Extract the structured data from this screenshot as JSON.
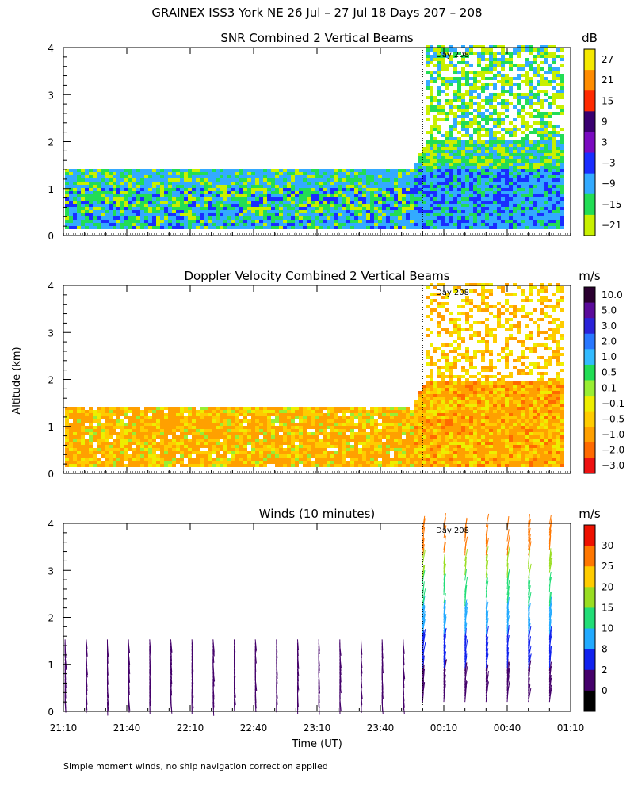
{
  "title": "GRAINEX ISS3 York NE  26 Jul – 27 Jul 18 Days 207 – 208",
  "footer": "Simple moment winds, no ship navigation correction applied",
  "ylabel": "Altitude (km)",
  "xlabel": "Time (UT)",
  "day_marker": "Day 208",
  "chart_data": [
    {
      "type": "heatmap",
      "title": "SNR Combined 2 Vertical Beams",
      "units": "dB",
      "ylabel": "Altitude (km)",
      "ylim": [
        0,
        4
      ],
      "yticks": [
        "0",
        "1",
        "2",
        "3",
        "4"
      ],
      "x_range_hours": [
        21.1667,
        25.1667
      ],
      "day_boundary_hour": 24.0,
      "low_mode_top_km": 1.4,
      "high_mode_top_km": 4.0,
      "colorbar": {
        "labels": [
          "27",
          "21",
          "15",
          "9",
          "3",
          "−3",
          "−9",
          "−15",
          "−21"
        ],
        "colors": [
          "#f5e800",
          "#ff8c00",
          "#ff2a00",
          "#3a0070",
          "#7a0ac0",
          "#1a2dff",
          "#33aaff",
          "#22dd55",
          "#c8f000"
        ]
      }
    },
    {
      "type": "heatmap",
      "title": "Doppler Velocity Combined 2 Vertical Beams",
      "units": "m/s",
      "ylabel": "Altitude (km)",
      "ylim": [
        0,
        4
      ],
      "yticks": [
        "0",
        "1",
        "2",
        "3",
        "4"
      ],
      "x_range_hours": [
        21.1667,
        25.1667
      ],
      "day_boundary_hour": 24.0,
      "colorbar": {
        "labels": [
          "10.0",
          "5.0",
          "3.0",
          "2.0",
          "1.0",
          "0.5",
          "0.1",
          "−0.1",
          "−0.5",
          "−1.0",
          "−2.0",
          "−3.0"
        ],
        "colors": [
          "#2a0030",
          "#5a0a9a",
          "#2a22d8",
          "#2877ff",
          "#33bbff",
          "#22dd55",
          "#99ee33",
          "#eeee00",
          "#ffcc00",
          "#ffa000",
          "#ff6a00",
          "#ee1111"
        ]
      }
    },
    {
      "type": "wind_barbs",
      "title": "Winds (10 minutes)",
      "units": "m/s",
      "ylabel": "Altitude (km)",
      "ylim": [
        0,
        4
      ],
      "yticks": [
        "0",
        "1",
        "2",
        "3",
        "4"
      ],
      "xlabel": "Time (UT)",
      "xticks": [
        "21:10",
        "21:40",
        "22:10",
        "22:40",
        "23:10",
        "23:40",
        "00:10",
        "00:40",
        "01:10"
      ],
      "xtick_hours": [
        21.1667,
        21.6667,
        22.1667,
        22.6667,
        23.1667,
        23.6667,
        24.1667,
        24.6667,
        25.1667
      ],
      "colorbar": {
        "labels": [
          "30",
          "25",
          "20",
          "15",
          "10",
          "8",
          "2",
          "0"
        ],
        "colors": [
          "#ee1100",
          "#ff7700",
          "#ffcc00",
          "#99dd22",
          "#22dd77",
          "#22aaff",
          "#1122ee",
          "#44006a",
          "#000000"
        ]
      }
    }
  ]
}
